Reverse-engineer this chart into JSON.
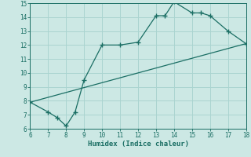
{
  "xlabel": "Humidex (Indice chaleur)",
  "ylabel": "",
  "background_color": "#cce8e4",
  "grid_color": "#aad4d0",
  "line_color": "#1a6e64",
  "xlim": [
    6,
    18
  ],
  "ylim": [
    6,
    15
  ],
  "xticks": [
    6,
    7,
    8,
    9,
    10,
    11,
    12,
    13,
    14,
    15,
    16,
    17,
    18
  ],
  "yticks": [
    6,
    7,
    8,
    9,
    10,
    11,
    12,
    13,
    14,
    15
  ],
  "curve1_x": [
    6,
    7,
    7.5,
    8,
    8.5,
    9,
    10,
    11,
    12,
    13,
    13.5,
    14,
    15,
    15.5,
    16,
    17,
    18
  ],
  "curve1_y": [
    7.9,
    7.2,
    6.8,
    6.2,
    7.2,
    9.5,
    12.0,
    12.0,
    12.2,
    14.1,
    14.1,
    15.1,
    14.3,
    14.3,
    14.1,
    13.0,
    12.1
  ],
  "curve2_x": [
    6,
    18
  ],
  "curve2_y": [
    7.9,
    12.1
  ],
  "marker": "+",
  "markersize": 4,
  "linewidth": 0.9,
  "ticksize": 5.5,
  "xlabel_fontsize": 6.5,
  "font_family": "monospace"
}
